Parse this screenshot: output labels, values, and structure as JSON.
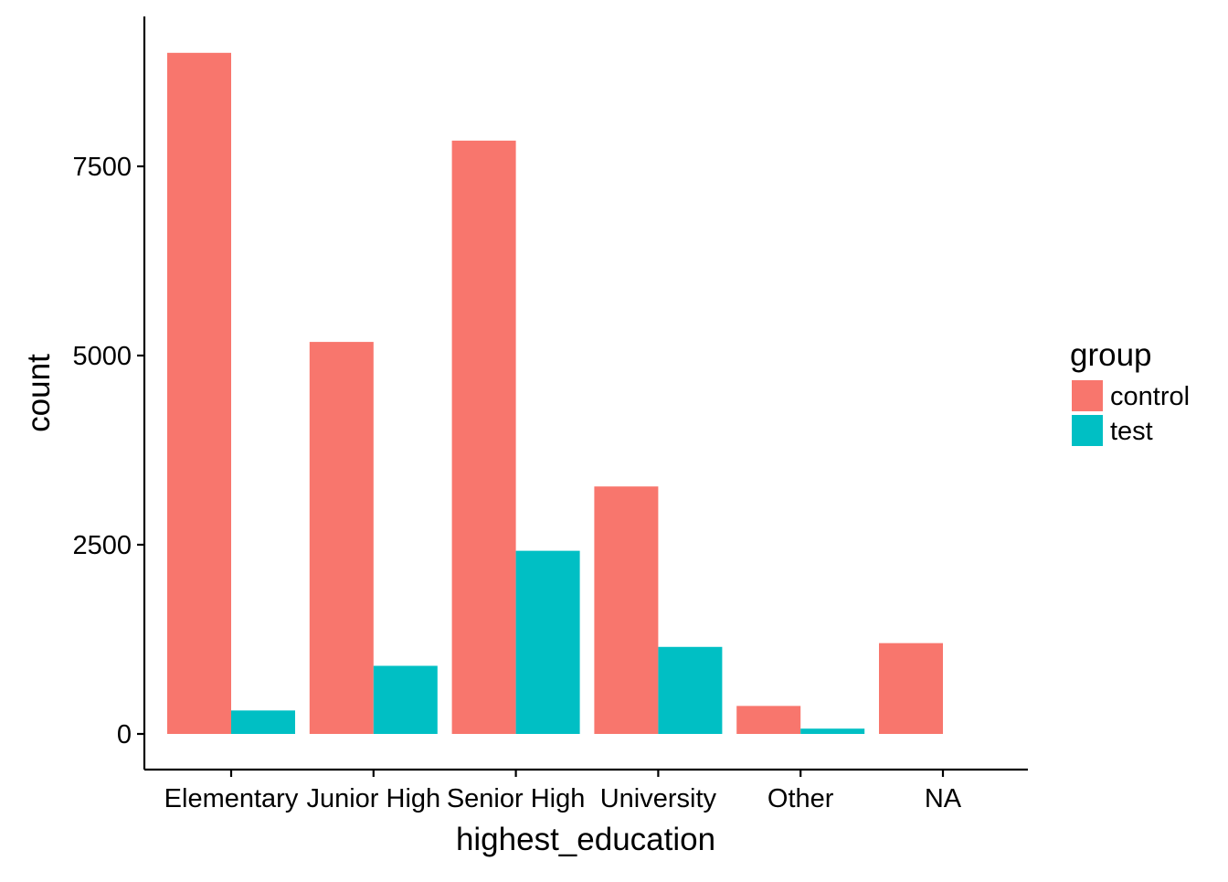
{
  "chart_data": {
    "type": "bar",
    "categories": [
      "Elementary",
      "Junior High",
      "Senior High",
      "University",
      "Other",
      "NA"
    ],
    "series": [
      {
        "name": "control",
        "color": "#F8766D",
        "values": [
          9000,
          5180,
          7840,
          3270,
          370,
          1200
        ]
      },
      {
        "name": "test",
        "color": "#00BFC4",
        "values": [
          310,
          900,
          2420,
          1150,
          70,
          null
        ]
      }
    ],
    "xlabel": "highest_education",
    "ylabel": "count",
    "yticks": [
      0,
      2500,
      5000,
      7500
    ],
    "ylim": [
      0,
      9000
    ],
    "legend": {
      "title": "group",
      "position": "right"
    },
    "grid": false
  }
}
